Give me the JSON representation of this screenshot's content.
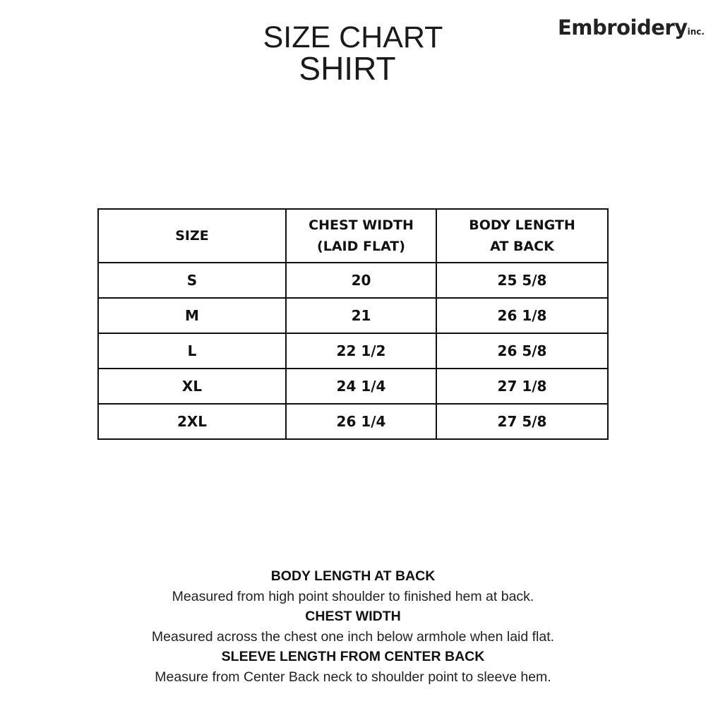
{
  "header": {
    "title_line1": "SIZE CHART",
    "title_line2": "SHIRT",
    "logo_text": "Embroidery",
    "logo_suffix": "inc."
  },
  "table": {
    "headers": [
      "SIZE",
      "CHEST WIDTH\n(LAID FLAT)",
      "BODY LENGTH\nAT BACK"
    ],
    "header_lines": [
      [
        "SIZE"
      ],
      [
        "CHEST WIDTH",
        "(LAID FLAT)"
      ],
      [
        "BODY LENGTH",
        "AT BACK"
      ]
    ],
    "rows": [
      [
        "S",
        "20",
        "25 5/8"
      ],
      [
        "M",
        "21",
        "26 1/8"
      ],
      [
        "L",
        "22 1/2",
        "26 5/8"
      ],
      [
        "XL",
        "24 1/4",
        "27 1/8"
      ],
      [
        "2XL",
        "26 1/4",
        "27 5/8"
      ]
    ]
  },
  "notes": [
    {
      "heading": "BODY LENGTH AT BACK",
      "text": "Measured from high point shoulder to finished hem at back."
    },
    {
      "heading": "CHEST WIDTH",
      "text": "Measured across the chest one inch below armhole when laid flat."
    },
    {
      "heading": "SLEEVE LENGTH FROM CENTER BACK",
      "text": "Measure from Center Back neck to shoulder point to sleeve hem."
    }
  ]
}
